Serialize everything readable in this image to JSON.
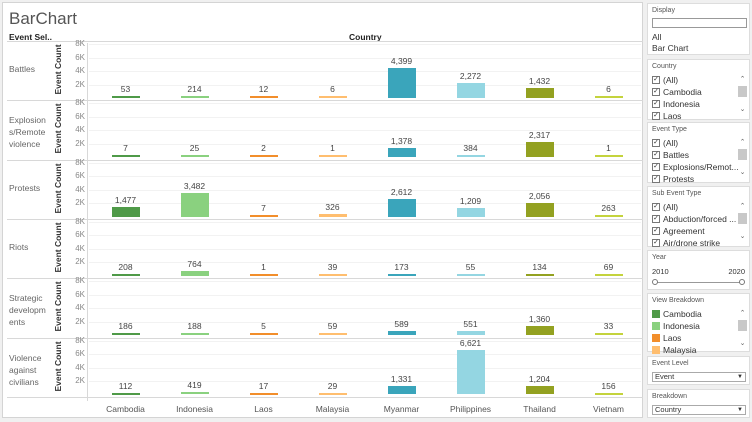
{
  "title": "BarChart",
  "header": {
    "row_field": "Event Sel..",
    "column_field": "Country"
  },
  "axis_label": "Event Count",
  "ticks": [
    "8K",
    "6K",
    "4K",
    "2K"
  ],
  "chart_data": {
    "type": "bar",
    "title": "BarChart",
    "xlabel": "Country",
    "ylabel": "Event Count",
    "ylim": [
      0,
      8000
    ],
    "categories": [
      "Cambodia",
      "Indonesia",
      "Laos",
      "Malaysia",
      "Myanmar",
      "Philippines",
      "Thailand",
      "Vietnam"
    ],
    "colors": [
      "#4f9a48",
      "#8ad17f",
      "#f28e2b",
      "#ffbe6f",
      "#3aa5bb",
      "#94d6e2",
      "#93a121",
      "#c4d33d"
    ],
    "series": [
      {
        "name": "Battles",
        "label": "Battles",
        "values": [
          53,
          214,
          12,
          6,
          4399,
          2272,
          1432,
          6
        ],
        "labels": [
          "53",
          "214",
          "12",
          "6",
          "4,399",
          "2,272",
          "1,432",
          "6"
        ]
      },
      {
        "name": "Explosions/Remote violence",
        "label": "Explosion s/Remote violence",
        "values": [
          7,
          25,
          2,
          1,
          1378,
          384,
          2317,
          1
        ],
        "labels": [
          "7",
          "25",
          "2",
          "1",
          "1,378",
          "384",
          "2,317",
          "1"
        ]
      },
      {
        "name": "Protests",
        "label": "Protests",
        "values": [
          1477,
          3482,
          7,
          326,
          2612,
          1209,
          2056,
          263
        ],
        "labels": [
          "1,477",
          "3,482",
          "7",
          "326",
          "2,612",
          "1,209",
          "2,056",
          "263"
        ]
      },
      {
        "name": "Riots",
        "label": "Riots",
        "values": [
          208,
          764,
          1,
          39,
          173,
          55,
          134,
          69
        ],
        "labels": [
          "208",
          "764",
          "1",
          "39",
          "173",
          "55",
          "134",
          "69"
        ]
      },
      {
        "name": "Strategic developments",
        "label": "Strategic developm ents",
        "values": [
          186,
          188,
          5,
          59,
          589,
          551,
          1360,
          33
        ],
        "labels": [
          "186",
          "188",
          "5",
          "59",
          "589",
          "551",
          "1,360",
          "33"
        ]
      },
      {
        "name": "Violence against civilians",
        "label": "Violence against civilians",
        "values": [
          112,
          419,
          17,
          29,
          1331,
          6621,
          1204,
          156
        ],
        "labels": [
          "112",
          "419",
          "17",
          "29",
          "1,331",
          "6,621",
          "1,204",
          "156"
        ]
      }
    ]
  },
  "sidebar": {
    "display": {
      "title": "Display",
      "search": "",
      "items": [
        "All",
        "Bar Chart"
      ]
    },
    "country": {
      "title": "Country",
      "items": [
        "(All)",
        "Cambodia",
        "Indonesia",
        "Laos"
      ]
    },
    "event_type": {
      "title": "Event Type",
      "items": [
        "(All)",
        "Battles",
        "Explosions/Remot...",
        "Protests"
      ]
    },
    "sub_event_type": {
      "title": "Sub Event Type",
      "items": [
        "(All)",
        "Abduction/forced ...",
        "Agreement",
        "Air/drone strike"
      ]
    },
    "year": {
      "title": "Year",
      "min": "2010",
      "max": "2020"
    },
    "view_breakdown": {
      "title": "View Breakdown",
      "items": [
        "Cambodia",
        "Indonesia",
        "Laos",
        "Malaysia"
      ],
      "colors": [
        "#4f9a48",
        "#8ad17f",
        "#f28e2b",
        "#ffbe6f"
      ]
    },
    "event_level": {
      "title": "Event Level",
      "value": "Event"
    },
    "breakdown": {
      "title": "Breakdown",
      "value": "Country"
    }
  }
}
